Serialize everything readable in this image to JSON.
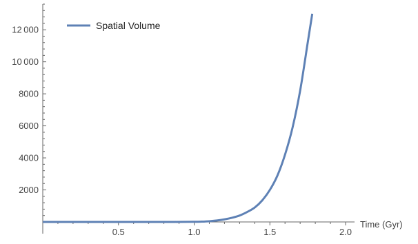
{
  "chart_data": {
    "type": "line",
    "xlabel": "Time (Gyr)",
    "ylabel": "",
    "xlim": [
      0,
      2.0
    ],
    "ylim": [
      0,
      13600
    ],
    "x_ticks": [
      0.5,
      1.0,
      1.5,
      2.0
    ],
    "x_tick_labels": [
      "0.5",
      "1.0",
      "1.5",
      "2.0"
    ],
    "y_ticks": [
      2000,
      4000,
      6000,
      8000,
      10000,
      12000
    ],
    "y_tick_labels": [
      "2000",
      "4000",
      "6000",
      "8000",
      "10 000",
      "12 000"
    ],
    "grid": false,
    "legend_position": "top-left",
    "series": [
      {
        "name": "Spatial Volume",
        "color": "#5E81B5",
        "x": [
          0,
          0.2,
          0.4,
          0.6,
          0.8,
          1.0,
          1.05,
          1.1,
          1.15,
          1.2,
          1.25,
          1.3,
          1.35,
          1.4,
          1.45,
          1.5,
          1.55,
          1.6,
          1.65,
          1.7,
          1.75,
          1.78
        ],
        "y": [
          0,
          0,
          0,
          0,
          1,
          8,
          20,
          45,
          90,
          160,
          260,
          400,
          620,
          900,
          1350,
          2000,
          2900,
          4200,
          5900,
          8200,
          11200,
          13000
        ]
      }
    ]
  }
}
